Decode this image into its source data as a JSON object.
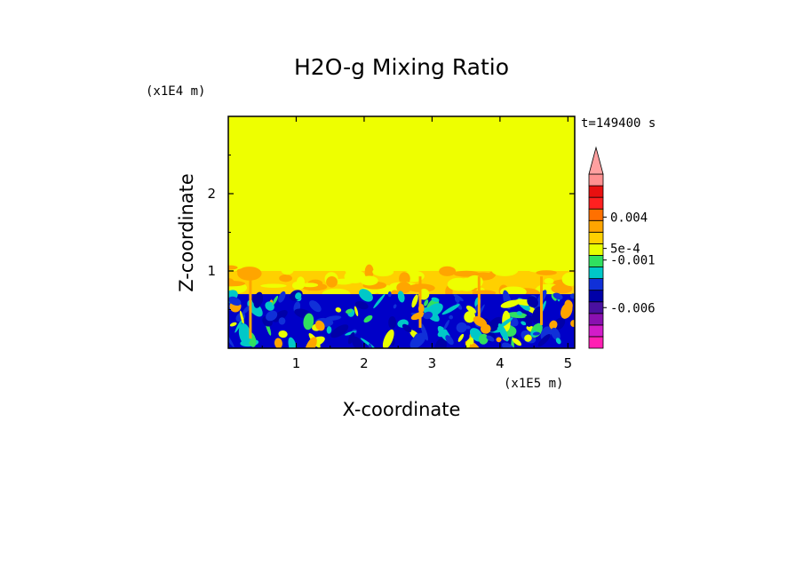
{
  "chart_data": {
    "type": "heatmap",
    "title": "H2O-g Mixing Ratio",
    "xlabel": "X-coordinate",
    "ylabel": "Z-coordinate",
    "x_scale_label": "(x1E5 m)",
    "y_scale_label": "(x1E4 m)",
    "time_label": "t=149400 s",
    "xlim": [
      0,
      5.1
    ],
    "ylim": [
      0,
      3.0
    ],
    "x_ticks": [
      1,
      2,
      3,
      4,
      5
    ],
    "x_tick_labels": [
      "1",
      "2",
      "3",
      "4",
      "5"
    ],
    "y_ticks": [
      1,
      2
    ],
    "y_tick_labels": [
      "1",
      "2"
    ],
    "colorbar": {
      "colors": [
        "#ff1fb3",
        "#d21cc9",
        "#8a10b0",
        "#4a10a0",
        "#0000a8",
        "#1030d8",
        "#00c8c8",
        "#30e060",
        "#e8ff00",
        "#ffd000",
        "#ffa500",
        "#ff7000",
        "#ff2020",
        "#e81010",
        "#ff9090"
      ],
      "extend_color": "#ffa0a0",
      "labels": [
        {
          "text": "0.004",
          "level": 11.3
        },
        {
          "text": "5e-4",
          "level": 8.6
        },
        {
          "text": "-0.001",
          "level": 7.6
        },
        {
          "text": "-0.006",
          "level": 3.5
        }
      ]
    },
    "regions": {
      "upper_value_color": "#eeff00",
      "transition_top_z": 1.0,
      "transition_bottom_z": 0.7,
      "transition_color": "#ffd000",
      "lower_color": "#0000c8"
    }
  }
}
